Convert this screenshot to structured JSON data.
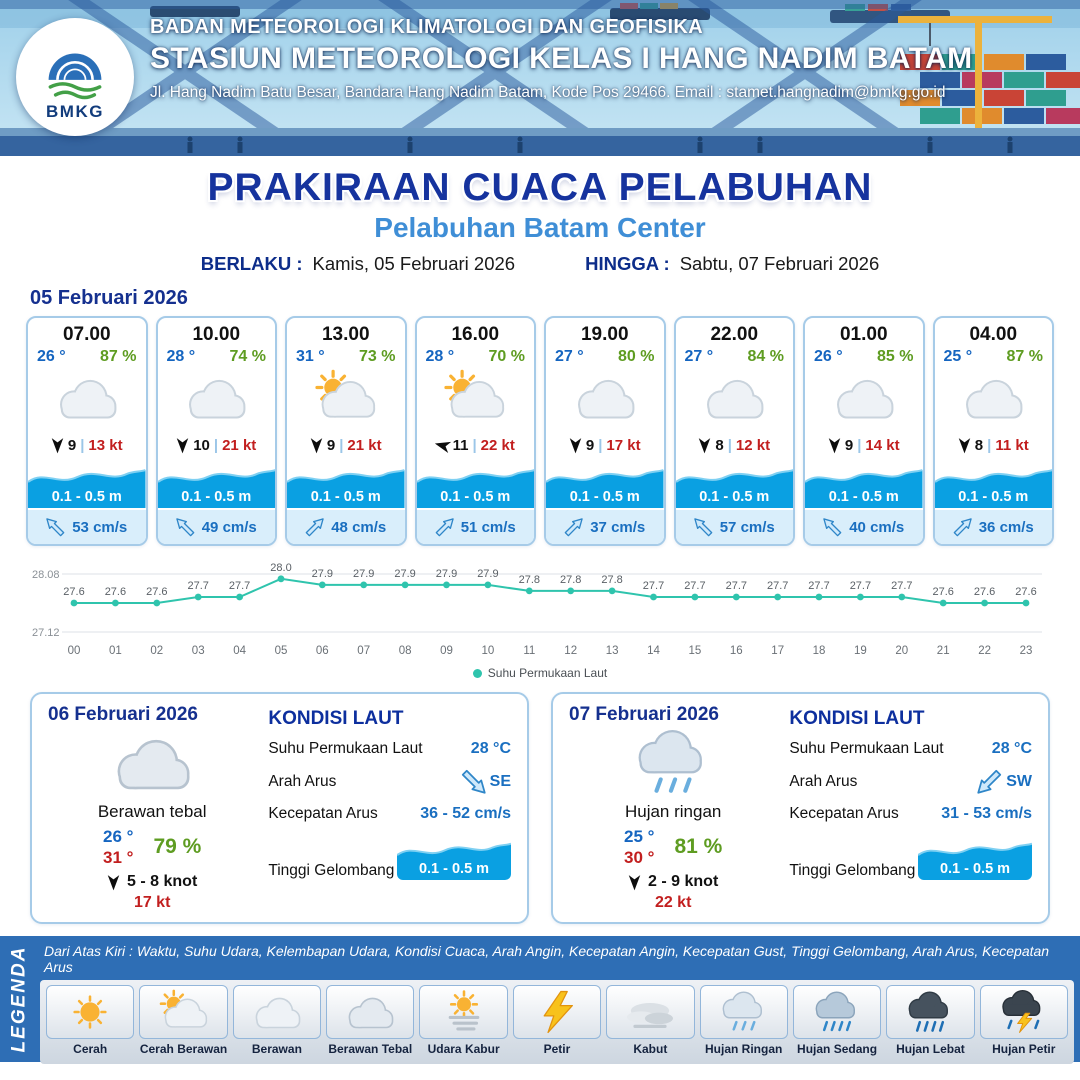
{
  "header": {
    "org": "BADAN METEOROLOGI KLIMATOLOGI DAN GEOFISIKA",
    "station": "STASIUN METEOROLOGI KELAS I HANG NADIM BATAM",
    "address": "Jl. Hang Nadim Batu Besar, Bandara Hang Nadim Batam, Kode Pos 29466. Email : stamet.hangnadim@bmkg.go.id",
    "logo_text": "BMKG"
  },
  "title": {
    "main": "PRAKIRAAN CUACA PELABUHAN",
    "subtitle": "Pelabuhan Batam Center",
    "valid_label": "BERLAKU :",
    "valid_value": "Kamis, 05 Februari 2026",
    "until_label": "HINGGA :",
    "until_value": "Sabtu, 07 Februari 2026"
  },
  "forecast": {
    "date": "05 Februari 2026",
    "cards": [
      {
        "time": "07.00",
        "temp": "26 °",
        "humidity": "87 %",
        "icon": "berawan",
        "wind_rot": 0,
        "wind_speed": "9",
        "sep": "|",
        "gust": "13 kt",
        "wave": "0.1 - 0.5 m",
        "current_rot": -90,
        "current": "53 cm/s"
      },
      {
        "time": "10.00",
        "temp": "28 °",
        "humidity": "74 %",
        "icon": "berawan",
        "wind_rot": 0,
        "wind_speed": "10",
        "sep": "|",
        "gust": "21 kt",
        "wave": "0.1 - 0.5 m",
        "current_rot": -90,
        "current": "49 cm/s"
      },
      {
        "time": "13.00",
        "temp": "31 °",
        "humidity": "73 %",
        "icon": "cerah-berawan",
        "wind_rot": 0,
        "wind_speed": "9",
        "sep": "|",
        "gust": "21 kt",
        "wave": "0.1 - 0.5 m",
        "current_rot": 0,
        "current": "48 cm/s"
      },
      {
        "time": "16.00",
        "temp": "28 °",
        "humidity": "70 %",
        "icon": "cerah-berawan",
        "wind_rot": 105,
        "wind_speed": "11",
        "sep": "|",
        "gust": "22 kt",
        "wave": "0.1 - 0.5 m",
        "current_rot": 0,
        "current": "51 cm/s"
      },
      {
        "time": "19.00",
        "temp": "27 °",
        "humidity": "80 %",
        "icon": "berawan",
        "wind_rot": 0,
        "wind_speed": "9",
        "sep": "|",
        "gust": "17 kt",
        "wave": "0.1 - 0.5 m",
        "current_rot": 0,
        "current": "37 cm/s"
      },
      {
        "time": "22.00",
        "temp": "27 °",
        "humidity": "84 %",
        "icon": "berawan",
        "wind_rot": 0,
        "wind_speed": "8",
        "sep": "|",
        "gust": "12 kt",
        "wave": "0.1 - 0.5 m",
        "current_rot": -90,
        "current": "57 cm/s"
      },
      {
        "time": "01.00",
        "temp": "26 °",
        "humidity": "85 %",
        "icon": "berawan",
        "wind_rot": 0,
        "wind_speed": "9",
        "sep": "|",
        "gust": "14 kt",
        "wave": "0.1 - 0.5 m",
        "current_rot": -90,
        "current": "40 cm/s"
      },
      {
        "time": "04.00",
        "temp": "25 °",
        "humidity": "87 %",
        "icon": "berawan",
        "wind_rot": 0,
        "wind_speed": "8",
        "sep": "|",
        "gust": "11 kt",
        "wave": "0.1 - 0.5 m",
        "current_rot": 0,
        "current": "36 cm/s"
      }
    ]
  },
  "chart_data": {
    "type": "line",
    "x": [
      "00",
      "01",
      "02",
      "03",
      "04",
      "05",
      "06",
      "07",
      "08",
      "09",
      "10",
      "11",
      "12",
      "13",
      "14",
      "15",
      "16",
      "17",
      "18",
      "19",
      "20",
      "21",
      "22",
      "23"
    ],
    "series": [
      {
        "name": "Suhu Permukaan Laut",
        "values": [
          27.6,
          27.6,
          27.6,
          27.7,
          27.7,
          28.0,
          27.9,
          27.9,
          27.9,
          27.9,
          27.9,
          27.8,
          27.8,
          27.8,
          27.7,
          27.7,
          27.7,
          27.7,
          27.7,
          27.7,
          27.7,
          27.6,
          27.6,
          27.6
        ]
      }
    ],
    "ylim": [
      27.12,
      28.08
    ],
    "line_color": "#2fc4ad",
    "legend_position": "bottom",
    "grid": "horizontal-minimal"
  },
  "days": [
    {
      "date": "06 Februari 2026",
      "icon": "berawan-tebal",
      "condition": "Berawan tebal",
      "temp_min": "26 °",
      "temp_max": "31 °",
      "humidity": "79 %",
      "wind_range": "5 - 8 knot",
      "gust": "17 kt",
      "sea": {
        "heading": "KONDISI LAUT",
        "sst_label": "Suhu Permukaan Laut",
        "sst": "28 °C",
        "current_dir_label": "Arah Arus",
        "current_dir": "SE",
        "current_rot": 90,
        "current_speed_label": "Kecepatan Arus",
        "current_speed": "36 - 52 cm/s",
        "wave_label": "Tinggi Gelombang",
        "wave": "0.1 - 0.5 m"
      }
    },
    {
      "date": "07 Februari 2026",
      "icon": "hujan-ringan",
      "condition": "Hujan ringan",
      "temp_min": "25 °",
      "temp_max": "30 °",
      "humidity": "81 %",
      "wind_range": "2 - 9 knot",
      "gust": "22 kt",
      "sea": {
        "heading": "KONDISI LAUT",
        "sst_label": "Suhu Permukaan Laut",
        "sst": "28 °C",
        "current_dir_label": "Arah Arus",
        "current_dir": "SW",
        "current_rot": 180,
        "current_speed_label": "Kecepatan Arus",
        "current_speed": "31 - 53 cm/s",
        "wave_label": "Tinggi Gelombang",
        "wave": "0.1 - 0.5 m"
      }
    }
  ],
  "legend": {
    "title": "LEGENDA",
    "description": "Dari Atas Kiri : Waktu, Suhu Udara, Kelembapan Udara, Kondisi Cuaca, Arah Angin, Kecepatan Angin, Kecepatan Gust, Tinggi Gelombang, Arah Arus, Kecepatan Arus",
    "items": [
      {
        "label": "Cerah",
        "icon": "cerah"
      },
      {
        "label": "Cerah Berawan",
        "icon": "cerah-berawan"
      },
      {
        "label": "Berawan",
        "icon": "berawan"
      },
      {
        "label": "Berawan Tebal",
        "icon": "berawan-tebal"
      },
      {
        "label": "Udara Kabur",
        "icon": "udara-kabur"
      },
      {
        "label": "Petir",
        "icon": "petir"
      },
      {
        "label": "Kabut",
        "icon": "kabut"
      },
      {
        "label": "Hujan Ringan",
        "icon": "hujan-ringan"
      },
      {
        "label": "Hujan Sedang",
        "icon": "hujan-sedang"
      },
      {
        "label": "Hujan Lebat",
        "icon": "hujan-lebat"
      },
      {
        "label": "Hujan Petir",
        "icon": "hujan-petir"
      }
    ]
  },
  "colors": {
    "navy": "#15308f",
    "title_blue": "#16339e",
    "subtitle_blue": "#3f8ed6",
    "temp_blue": "#1565c0",
    "humidity_green": "#5e9c21",
    "gust_red": "#c21f1f",
    "wave_blue": "#0aa0e2",
    "chart_teal": "#2fc4ad",
    "legend_blue": "#2e6eb5"
  }
}
